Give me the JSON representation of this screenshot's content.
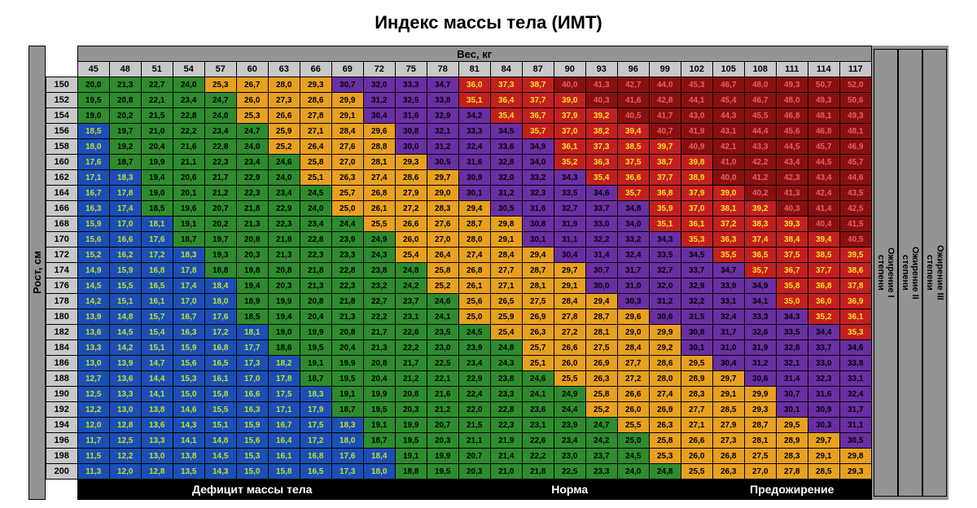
{
  "title": "Индекс массы тела (ИМТ)",
  "x_label": "Вес, кг",
  "y_label": "Рост, см",
  "footer_categories": [
    "Дефицит массы тела",
    "Норма",
    "Предожирение"
  ],
  "footer_spans": [
    11,
    9,
    5
  ],
  "right_categories": [
    "Ожирение III\nстепени",
    "Ожирение II\nстепени",
    "Ожирение I\nстепени"
  ],
  "right_flex": [
    7,
    6,
    12
  ],
  "weights": [
    45,
    48,
    51,
    54,
    57,
    60,
    63,
    66,
    69,
    72,
    75,
    78,
    81,
    84,
    87,
    90,
    93,
    96,
    99,
    102,
    105,
    108,
    111,
    114,
    117
  ],
  "heights": [
    150,
    152,
    154,
    156,
    158,
    160,
    162,
    164,
    166,
    168,
    170,
    172,
    174,
    176,
    178,
    180,
    182,
    184,
    186,
    188,
    190,
    192,
    194,
    196,
    198,
    200
  ],
  "colors": {
    "hdr": "#c8c8c8",
    "deficit": "#1b4fb5",
    "normal": "#2e8c2e",
    "pre": "#e8a020",
    "ob1": "#6a2fa3",
    "ob2": "#c22020",
    "ob3": "#8a1010",
    "deficit_text": "#c0e030",
    "ob2_text": "#ffe020",
    "ob3_text": "#e86060"
  },
  "thresholds": {
    "deficit_max": 18.5,
    "normal_max": 25.0,
    "pre_max": 30.0,
    "ob1_max": 35.0,
    "ob2_max": 40.0
  }
}
